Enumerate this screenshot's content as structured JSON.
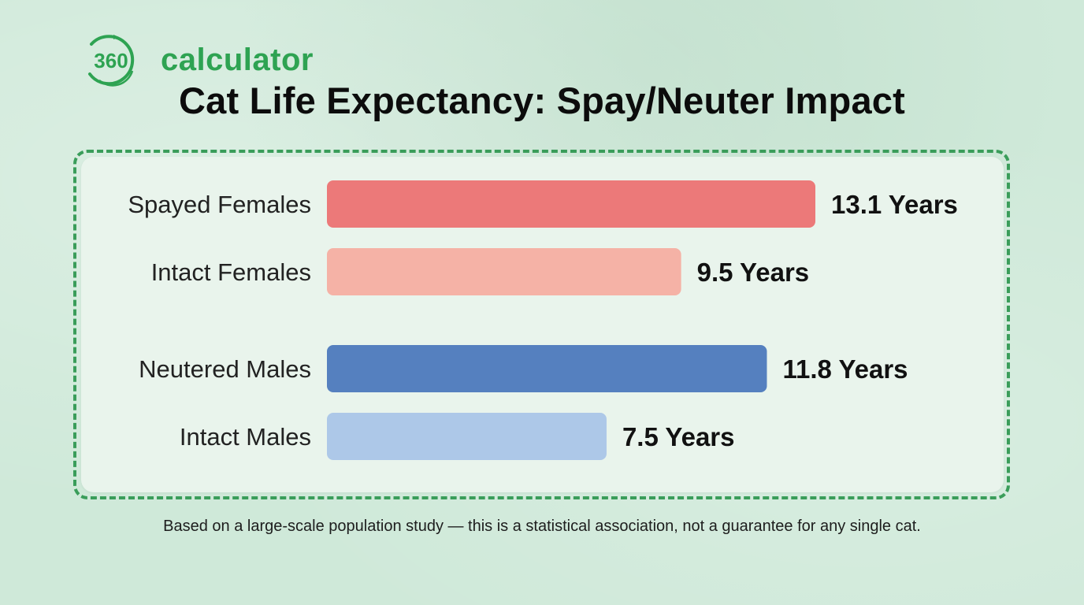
{
  "brand": {
    "logo_number": "360",
    "name": "calculator",
    "color": "#2ea352"
  },
  "chart_data": {
    "type": "bar",
    "orientation": "horizontal",
    "title": "Cat Life Expectancy: Spay/Neuter Impact",
    "categories": [
      "Spayed Females",
      "Intact Females",
      "Neutered Males",
      "Intact Males"
    ],
    "values": [
      13.1,
      9.5,
      11.8,
      7.5
    ],
    "value_labels": [
      "13.1 Years",
      "9.5 Years",
      "11.8 Years",
      "7.5 Years"
    ],
    "bar_colors": [
      "#ec7979",
      "#f5b2a6",
      "#5580bf",
      "#adc8e8"
    ],
    "unit": "Years",
    "xlim": [
      0,
      13.1
    ],
    "grid": false,
    "legend": "none",
    "groups": [
      {
        "categories": [
          "Spayed Females",
          "Intact Females"
        ]
      },
      {
        "categories": [
          "Neutered Males",
          "Intact Males"
        ]
      }
    ]
  },
  "footnote": "Based on a large-scale population study — this is a statistical association, not a guarantee for any single cat."
}
